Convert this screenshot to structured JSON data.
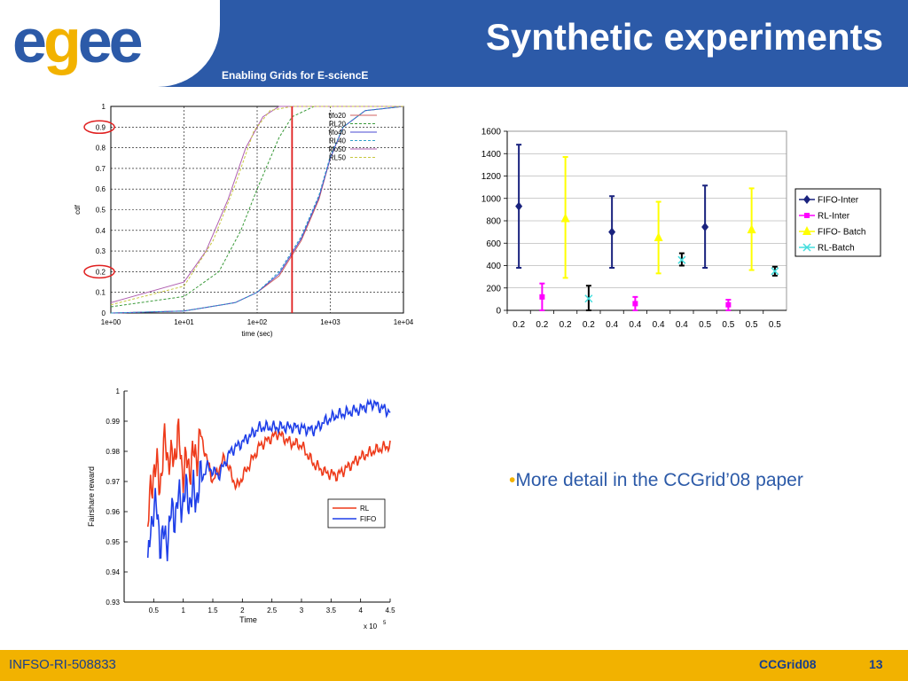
{
  "header": {
    "logo": "egee",
    "tagline": "Enabling Grids for E-sciencE",
    "title": "Synthetic experiments"
  },
  "bullet": {
    "marker": "•",
    "text": "More detail in the CCGrid’08 paper"
  },
  "footer": {
    "project": "INFSO-RI-508833",
    "conference": "CCGrid08",
    "page": "13"
  },
  "colors": {
    "brand_blue": "#2c5aa8",
    "brand_yellow": "#f2b200"
  },
  "chart_data": [
    {
      "type": "line",
      "xscale": "log",
      "xlim": [
        1,
        10000
      ],
      "ylim": [
        0,
        1
      ],
      "xlabel": "time (sec)",
      "ylabel": "cdf",
      "xticks": [
        "1e+00",
        "1e+01",
        "1e+02",
        "1e+03",
        "1e+04"
      ],
      "yticks": [
        "0",
        "0.1",
        "0.2",
        "0.3",
        "0.4",
        "0.5",
        "0.6",
        "0.7",
        "0.8",
        "0.9",
        "1"
      ],
      "highlighted_ticks": [
        "0.9",
        "0.2"
      ],
      "vertical_marker_x": 300,
      "grid": true,
      "legend_position": "top-right",
      "series": [
        {
          "name": "fifo20",
          "color": "#d06060",
          "points": [
            [
              1,
              0
            ],
            [
              10,
              0.01
            ],
            [
              50,
              0.05
            ],
            [
              100,
              0.1
            ],
            [
              200,
              0.18
            ],
            [
              400,
              0.35
            ],
            [
              700,
              0.55
            ],
            [
              1000,
              0.75
            ],
            [
              1500,
              0.9
            ],
            [
              3000,
              0.98
            ],
            [
              10000,
              1
            ]
          ]
        },
        {
          "name": "RL20",
          "color": "#3a9a3a",
          "points": [
            [
              1,
              0.03
            ],
            [
              10,
              0.08
            ],
            [
              30,
              0.2
            ],
            [
              60,
              0.4
            ],
            [
              100,
              0.6
            ],
            [
              200,
              0.85
            ],
            [
              300,
              0.95
            ],
            [
              600,
              1
            ],
            [
              10000,
              1
            ]
          ]
        },
        {
          "name": "fifo40",
          "color": "#4a4ad0",
          "points": [
            [
              1,
              0
            ],
            [
              10,
              0.01
            ],
            [
              50,
              0.05
            ],
            [
              100,
              0.1
            ],
            [
              200,
              0.19
            ],
            [
              400,
              0.36
            ],
            [
              700,
              0.56
            ],
            [
              1000,
              0.75
            ],
            [
              1500,
              0.9
            ],
            [
              3000,
              0.98
            ],
            [
              10000,
              1
            ]
          ]
        },
        {
          "name": "RL40",
          "color": "#30a0c8",
          "points": [
            [
              1,
              0
            ],
            [
              10,
              0.01
            ],
            [
              50,
              0.05
            ],
            [
              100,
              0.1
            ],
            [
              200,
              0.2
            ],
            [
              400,
              0.37
            ],
            [
              700,
              0.57
            ],
            [
              1000,
              0.76
            ],
            [
              1500,
              0.9
            ],
            [
              3000,
              0.98
            ],
            [
              10000,
              1
            ]
          ]
        },
        {
          "name": "fifo50",
          "color": "#b060b0",
          "points": [
            [
              1,
              0.05
            ],
            [
              10,
              0.15
            ],
            [
              20,
              0.3
            ],
            [
              40,
              0.55
            ],
            [
              70,
              0.8
            ],
            [
              120,
              0.95
            ],
            [
              200,
              1
            ],
            [
              10000,
              1
            ]
          ]
        },
        {
          "name": "RL50",
          "color": "#c8c840",
          "points": [
            [
              1,
              0.04
            ],
            [
              10,
              0.13
            ],
            [
              25,
              0.35
            ],
            [
              50,
              0.62
            ],
            [
              90,
              0.88
            ],
            [
              150,
              0.98
            ],
            [
              300,
              1
            ],
            [
              10000,
              1
            ]
          ]
        }
      ]
    },
    {
      "type": "errorbar",
      "ylim": [
        0,
        1600
      ],
      "yticks": [
        "0",
        "200",
        "400",
        "600",
        "800",
        "1000",
        "1200",
        "1400",
        "1600"
      ],
      "categories": [
        "0.2",
        "0.2",
        "0.2",
        "0.2",
        "0.4",
        "0.4",
        "0.4",
        "0.4",
        "0.5",
        "0.5",
        "0.5",
        "0.5"
      ],
      "legend_position": "right",
      "series": [
        {
          "name": "FIFO-Inter",
          "color": "#1a237e",
          "marker": "diamond",
          "points": [
            {
              "i": 0,
              "y": 930,
              "lo": 380,
              "hi": 1480
            },
            {
              "i": 4,
              "y": 700,
              "lo": 380,
              "hi": 1020
            },
            {
              "i": 8,
              "y": 745,
              "lo": 380,
              "hi": 1115
            }
          ]
        },
        {
          "name": "RL-Inter",
          "color": "#ff00ff",
          "marker": "square",
          "points": [
            {
              "i": 1,
              "y": 120,
              "lo": 0,
              "hi": 240
            },
            {
              "i": 5,
              "y": 60,
              "lo": 0,
              "hi": 120
            },
            {
              "i": 9,
              "y": 50,
              "lo": 0,
              "hi": 95
            }
          ]
        },
        {
          "name": "FIFO- Batch",
          "color": "#ffff00",
          "marker": "triangle",
          "points": [
            {
              "i": 2,
              "y": 820,
              "lo": 290,
              "hi": 1370
            },
            {
              "i": 6,
              "y": 650,
              "lo": 330,
              "hi": 970
            },
            {
              "i": 10,
              "y": 720,
              "lo": 360,
              "hi": 1090
            }
          ]
        },
        {
          "name": "RL-Batch",
          "color": "#44dddd",
          "marker": "x",
          "points": [
            {
              "i": 3,
              "y": 105,
              "lo": 0,
              "hi": 220
            },
            {
              "i": 7,
              "y": 450,
              "lo": 400,
              "hi": 510
            },
            {
              "i": 11,
              "y": 350,
              "lo": 310,
              "hi": 390
            }
          ]
        }
      ]
    },
    {
      "type": "line",
      "xlim": [
        0,
        4.5
      ],
      "ylim": [
        0.93,
        1
      ],
      "xlabel": "Time",
      "ylabel": "Fairshare reward",
      "xticks": [
        "0.5",
        "1",
        "1.5",
        "2",
        "2.5",
        "3",
        "3.5",
        "4",
        "4.5"
      ],
      "yticks": [
        "0.93",
        "0.94",
        "0.95",
        "0.96",
        "0.97",
        "0.98",
        "0.99",
        "1"
      ],
      "x_multiplier": "x 10",
      "x_multiplier_exp": "5",
      "legend_position": "right",
      "series": [
        {
          "name": "RL",
          "color": "#ee3a1a",
          "points": [
            [
              0.4,
              0.955
            ],
            [
              0.5,
              0.976
            ],
            [
              0.6,
              0.97
            ],
            [
              0.7,
              0.983
            ],
            [
              0.8,
              0.975
            ],
            [
              0.9,
              0.985
            ],
            [
              1.0,
              0.974
            ],
            [
              1.2,
              0.978
            ],
            [
              1.3,
              0.985
            ],
            [
              1.5,
              0.97
            ],
            [
              1.7,
              0.978
            ],
            [
              1.9,
              0.968
            ],
            [
              2.1,
              0.975
            ],
            [
              2.3,
              0.982
            ],
            [
              2.6,
              0.986
            ],
            [
              2.8,
              0.983
            ],
            [
              3.0,
              0.982
            ],
            [
              3.2,
              0.976
            ],
            [
              3.4,
              0.973
            ],
            [
              3.6,
              0.972
            ],
            [
              3.8,
              0.975
            ],
            [
              4.0,
              0.978
            ],
            [
              4.2,
              0.98
            ],
            [
              4.5,
              0.982
            ]
          ]
        },
        {
          "name": "FIFO",
          "color": "#1f3fe8",
          "points": [
            [
              0.4,
              0.94
            ],
            [
              0.5,
              0.965
            ],
            [
              0.6,
              0.952
            ],
            [
              0.7,
              0.95
            ],
            [
              0.8,
              0.958
            ],
            [
              0.9,
              0.962
            ],
            [
              1.0,
              0.965
            ],
            [
              1.2,
              0.965
            ],
            [
              1.4,
              0.975
            ],
            [
              1.6,
              0.972
            ],
            [
              1.8,
              0.98
            ],
            [
              2.0,
              0.983
            ],
            [
              2.3,
              0.988
            ],
            [
              2.6,
              0.988
            ],
            [
              2.9,
              0.988
            ],
            [
              3.2,
              0.987
            ],
            [
              3.4,
              0.99
            ],
            [
              3.6,
              0.992
            ],
            [
              3.8,
              0.993
            ],
            [
              4.0,
              0.994
            ],
            [
              4.2,
              0.996
            ],
            [
              4.5,
              0.993
            ]
          ]
        }
      ]
    }
  ]
}
